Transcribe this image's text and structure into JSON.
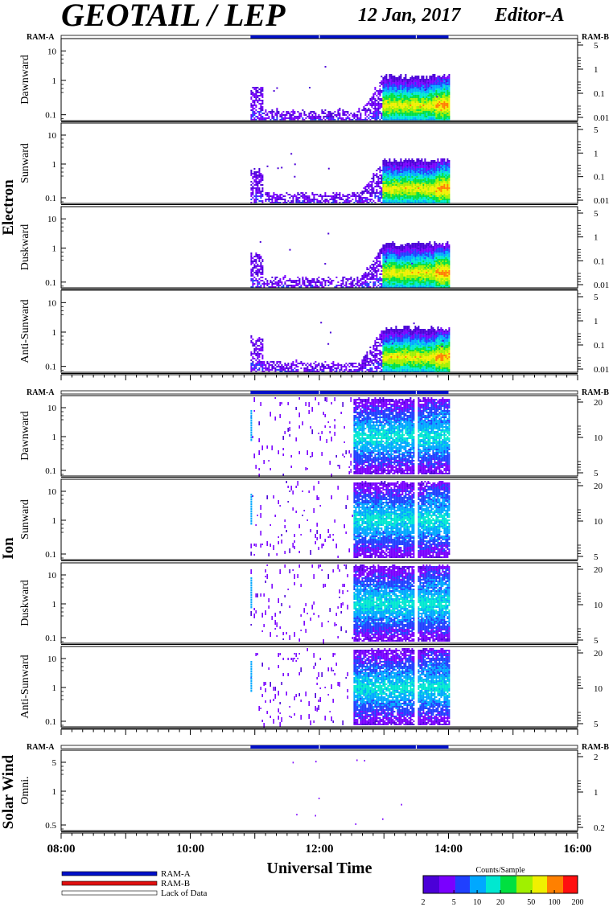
{
  "header": {
    "title": "GEOTAIL / LEP",
    "date": "12 Jan, 2017",
    "editor": "Editor-A"
  },
  "chart_data": {
    "type": "heatmap",
    "x_axis": {
      "label": "Universal Time",
      "range": [
        "08:00",
        "16:00"
      ],
      "tick_labels": [
        "08:00",
        "10:00",
        "12:00",
        "14:00",
        "16:00"
      ]
    },
    "data_coverage": [
      "10:56",
      "14:00"
    ],
    "data_gap_markers": [
      "12:00",
      "13:30"
    ],
    "colorbar": {
      "title": "Counts/Sample",
      "ticks": [
        "2",
        "5",
        "10",
        "20",
        "50",
        "100",
        "200"
      ],
      "colors": [
        "#4b00d8",
        "#7a00ff",
        "#2040ff",
        "#00a8ff",
        "#00e8d0",
        "#00e040",
        "#a0f000",
        "#f0f000",
        "#ff8000",
        "#ff1010"
      ]
    },
    "legend": [
      {
        "label": "RAM-A",
        "color": "#0010c8"
      },
      {
        "label": "RAM-B",
        "color": "#e01010"
      },
      {
        "label": "Lack of Data",
        "color": "#ffffff"
      }
    ],
    "groups": [
      {
        "name": "Electron",
        "ram_left": "RAM-A",
        "ram_right": "RAM-B",
        "panels": [
          {
            "label": "Dawnward",
            "left_ticks": [
              "10",
              "1",
              "0.1"
            ],
            "right_ticks": [
              "5",
              "1",
              "0.1",
              "0.01"
            ]
          },
          {
            "label": "Sunward",
            "left_ticks": [
              "10",
              "1",
              "0.1"
            ],
            "right_ticks": [
              "5",
              "1",
              "0.1",
              "0.01"
            ]
          },
          {
            "label": "Duskward",
            "left_ticks": [
              "10",
              "1",
              "0.1"
            ],
            "right_ticks": [
              "5",
              "1",
              "0.1",
              "0.01"
            ]
          },
          {
            "label": "Anti-Sunward",
            "left_ticks": [
              "10",
              "1",
              "0.1"
            ],
            "right_ticks": [
              "5",
              "1",
              "0.1",
              "0.01"
            ]
          }
        ]
      },
      {
        "name": "Ion",
        "ram_left": "RAM-A",
        "ram_right": "RAM-B",
        "panels": [
          {
            "label": "Dawnward",
            "left_ticks": [
              "10",
              "1",
              "0.1"
            ],
            "right_ticks": [
              "20",
              "10",
              "5"
            ]
          },
          {
            "label": "Sunward",
            "left_ticks": [
              "10",
              "1",
              "0.1"
            ],
            "right_ticks": [
              "20",
              "10",
              "5"
            ]
          },
          {
            "label": "Duskward",
            "left_ticks": [
              "10",
              "1",
              "0.1"
            ],
            "right_ticks": [
              "20",
              "10",
              "5"
            ]
          },
          {
            "label": "Anti-Sunward",
            "left_ticks": [
              "10",
              "1",
              "0.1"
            ],
            "right_ticks": [
              "20",
              "10",
              "5"
            ]
          }
        ]
      },
      {
        "name": "Solar Wind",
        "ram_left": "RAM-A",
        "ram_right": "RAM-B",
        "panels": [
          {
            "label": "Omni.",
            "left_ticks": [
              "5",
              "1",
              "0.5"
            ],
            "right_ticks": [
              "2",
              "1",
              "0.2"
            ]
          }
        ]
      }
    ]
  }
}
